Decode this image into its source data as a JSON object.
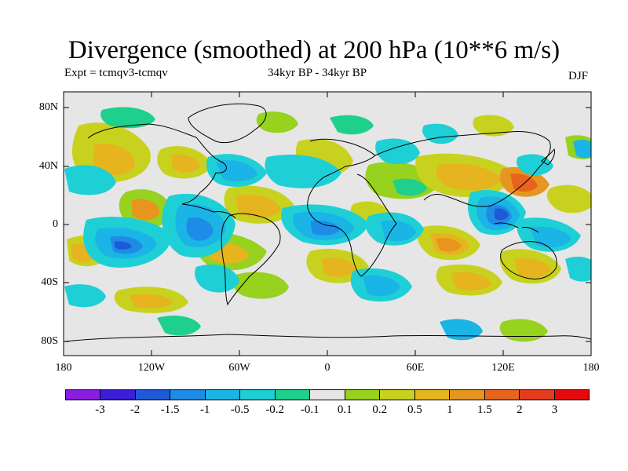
{
  "title": "Divergence (smoothed) at 200 hPa (10**6 m/s)",
  "subtitle_left": "Expt = tcmqv3-tcmqv",
  "subtitle_center": "34kyr BP - 34kyr BP",
  "season": "DJF",
  "lat_labels": [
    "80N",
    "40N",
    "0",
    "40S",
    "80S"
  ],
  "lon_labels": [
    "180",
    "120W",
    "60W",
    "0",
    "60E",
    "120E",
    "180"
  ],
  "colorbar": {
    "colors": [
      "#8a1ee0",
      "#3a1ed8",
      "#1e5ad8",
      "#1e8ce6",
      "#1ab4e6",
      "#1ecfd6",
      "#1ed08c",
      "#e6e6e6",
      "#96d21e",
      "#c8d21e",
      "#e6b41e",
      "#e6961e",
      "#e6641e",
      "#e63c1e",
      "#e60a0a"
    ],
    "labels": [
      "-3",
      "-2",
      "-1.5",
      "-1",
      "-0.5",
      "-0.2",
      "-0.1",
      "0.1",
      "0.2",
      "0.5",
      "1",
      "1.5",
      "2",
      "3"
    ]
  }
}
